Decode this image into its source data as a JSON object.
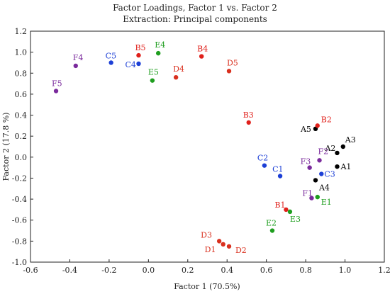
{
  "chart_data": {
    "type": "scatter",
    "title": "Factor Loadings, Factor 1 vs. Factor 2",
    "subtitle": "Extraction: Principal components",
    "xlabel": "Factor 1 (70.5%)",
    "ylabel": "Factor 2 (17.8 %)",
    "xlim": [
      -0.6,
      1.2
    ],
    "ylim": [
      -1.0,
      1.2
    ],
    "xticks": [
      "-0.6",
      "-0.4",
      "-0.2",
      "0.0",
      "0.2",
      "0.4",
      "0.6",
      "0.8",
      "1.0",
      "1.2"
    ],
    "yticks": [
      "-1.0",
      "-0.8",
      "-0.6",
      "-0.4",
      "-0.2",
      "0.0",
      "0.2",
      "0.4",
      "0.6",
      "0.8",
      "1.0",
      "1.2"
    ],
    "grid": false,
    "groups": {
      "A": "#000000",
      "B": "#e0201b",
      "C": "#1c3fd6",
      "D": "#d9301e",
      "E": "#1f9e1f",
      "F": "#7a2a9c"
    },
    "points": [
      {
        "label": "A1",
        "x": 0.96,
        "y": -0.09,
        "group": "A"
      },
      {
        "label": "A2",
        "x": 0.96,
        "y": 0.04,
        "group": "A"
      },
      {
        "label": "A3",
        "x": 0.99,
        "y": 0.1,
        "group": "A"
      },
      {
        "label": "A4",
        "x": 0.85,
        "y": -0.22,
        "group": "A"
      },
      {
        "label": "A5",
        "x": 0.85,
        "y": 0.27,
        "group": "A"
      },
      {
        "label": "B1",
        "x": 0.7,
        "y": -0.5,
        "group": "B"
      },
      {
        "label": "B2",
        "x": 0.86,
        "y": 0.3,
        "group": "B"
      },
      {
        "label": "B3",
        "x": 0.51,
        "y": 0.33,
        "group": "B"
      },
      {
        "label": "B4",
        "x": 0.27,
        "y": 0.96,
        "group": "B"
      },
      {
        "label": "B5",
        "x": -0.05,
        "y": 0.97,
        "group": "B"
      },
      {
        "label": "C1",
        "x": 0.67,
        "y": -0.18,
        "group": "C"
      },
      {
        "label": "C2",
        "x": 0.59,
        "y": -0.08,
        "group": "C"
      },
      {
        "label": "C3",
        "x": 0.88,
        "y": -0.16,
        "group": "C"
      },
      {
        "label": "C4",
        "x": -0.05,
        "y": 0.89,
        "group": "C"
      },
      {
        "label": "C5",
        "x": -0.19,
        "y": 0.9,
        "group": "C"
      },
      {
        "label": "D1",
        "x": 0.38,
        "y": -0.83,
        "group": "D"
      },
      {
        "label": "D2",
        "x": 0.41,
        "y": -0.85,
        "group": "D"
      },
      {
        "label": "D3",
        "x": 0.36,
        "y": -0.8,
        "group": "D"
      },
      {
        "label": "D4",
        "x": 0.14,
        "y": 0.76,
        "group": "D"
      },
      {
        "label": "D5",
        "x": 0.41,
        "y": 0.82,
        "group": "D"
      },
      {
        "label": "E1",
        "x": 0.86,
        "y": -0.38,
        "group": "E"
      },
      {
        "label": "E2",
        "x": 0.63,
        "y": -0.7,
        "group": "E"
      },
      {
        "label": "E3",
        "x": 0.72,
        "y": -0.52,
        "group": "E"
      },
      {
        "label": "E4",
        "x": 0.05,
        "y": 0.99,
        "group": "E"
      },
      {
        "label": "E5",
        "x": 0.02,
        "y": 0.73,
        "group": "E"
      },
      {
        "label": "F1",
        "x": 0.83,
        "y": -0.39,
        "group": "F"
      },
      {
        "label": "F2",
        "x": 0.87,
        "y": -0.03,
        "group": "F"
      },
      {
        "label": "F3",
        "x": 0.82,
        "y": -0.1,
        "group": "F"
      },
      {
        "label": "F4",
        "x": -0.37,
        "y": 0.87,
        "group": "F"
      },
      {
        "label": "F5",
        "x": -0.47,
        "y": 0.63,
        "group": "F"
      }
    ]
  }
}
